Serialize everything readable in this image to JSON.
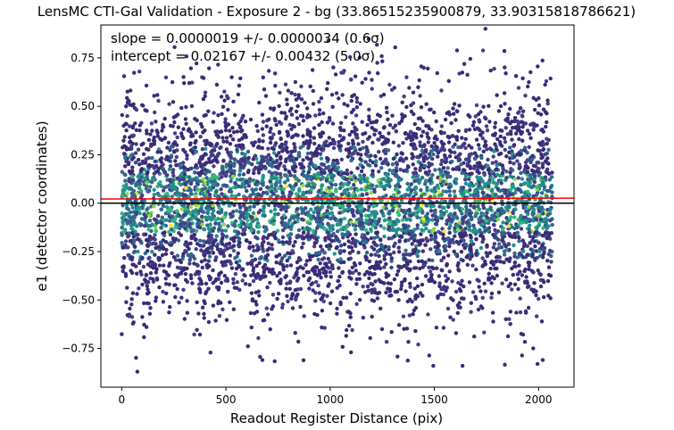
{
  "chart_data": {
    "type": "scatter",
    "title": "LensMC CTI-Gal Validation - Exposure 2 - bg (33.86515235900879, 33.90315818786621)",
    "xlabel": "Readout Register Distance (pix)",
    "ylabel": "e1 (detector coordinates)",
    "xlim": [
      -100,
      2170
    ],
    "ylim": [
      -0.95,
      0.92
    ],
    "xticks": [
      0,
      500,
      1000,
      1500,
      2000
    ],
    "yticks": [
      -0.75,
      -0.5,
      -0.25,
      0.0,
      0.25,
      0.5,
      0.75
    ],
    "ytick_labels": [
      "−0.75",
      "−0.50",
      "−0.25",
      "0.00",
      "0.25",
      "0.50",
      "0.75"
    ],
    "annotations": [
      "slope = 0.0000019 +/- 0.0000034 (0.6σ)",
      "intercept = 0.02167 +/- 0.00432 (5.0σ)"
    ],
    "fit_line": {
      "slope": 1.9e-06,
      "intercept": 0.02167,
      "color": "#ff0000"
    },
    "zero_line": {
      "y": 0.0,
      "color": "#000000"
    },
    "colormap": "viridis (point density)",
    "point_colors": [
      "#3b2a77",
      "#433e85",
      "#31688e",
      "#21918c",
      "#35b779",
      "#90d743",
      "#fde725"
    ],
    "outlier_points": [
      {
        "x": 1745,
        "y": 0.9
      },
      {
        "x": 75,
        "y": -0.87
      },
      {
        "x": 1495,
        "y": -0.84
      },
      {
        "x": 1635,
        "y": -0.84
      },
      {
        "x": 1995,
        "y": -0.83
      },
      {
        "x": 2020,
        "y": -0.81
      },
      {
        "x": 675,
        "y": -0.81
      },
      {
        "x": 1100,
        "y": -0.77
      }
    ],
    "data_range": {
      "x": [
        0,
        2066
      ],
      "y_core": [
        -0.45,
        0.45
      ],
      "y_full": [
        -0.87,
        0.9
      ]
    },
    "grid": false,
    "legend": "none"
  }
}
